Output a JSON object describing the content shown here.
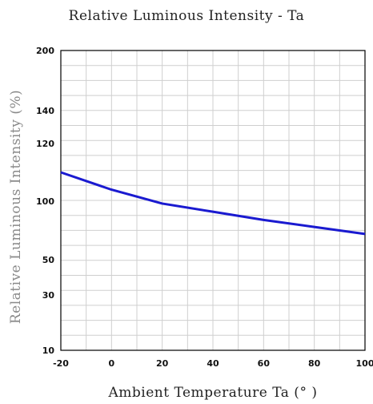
{
  "chart_data": {
    "type": "line",
    "title": "Relative Luminous Intensity - Ta",
    "xlabel": "Ambient Temperature Ta (° )",
    "ylabel": "Relative Luminous Intensity (%)",
    "xlim": [
      -20,
      100
    ],
    "x_ticks": [
      -20,
      0,
      20,
      40,
      60,
      80,
      100
    ],
    "y_tick_labels": [
      "200",
      "140",
      "120",
      "100",
      "50",
      "30",
      "10"
    ],
    "y_tick_values": [
      200,
      140,
      120,
      100,
      50,
      30,
      10
    ],
    "grid": true,
    "series": [
      {
        "color": "#1a1ad0",
        "x": [
          -20,
          0,
          20,
          40,
          60,
          80,
          100
        ],
        "y": [
          110,
          104,
          98,
          91,
          84,
          78,
          72
        ]
      }
    ]
  }
}
